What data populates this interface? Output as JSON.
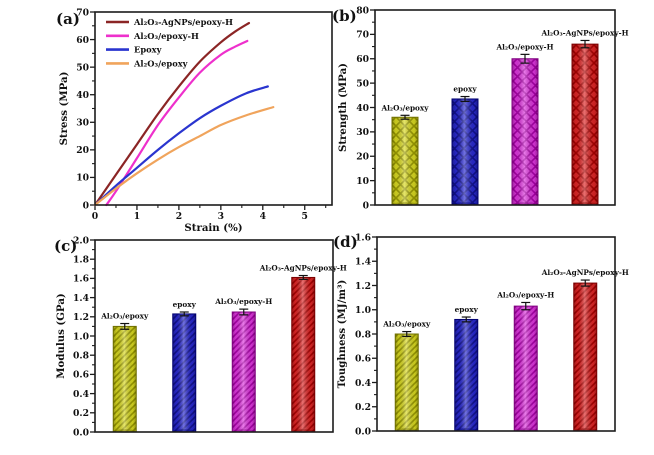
{
  "figure": {
    "description": "Four-panel mechanical properties figure of epoxy composites",
    "background_color": "#ffffff",
    "axis_color": "#1c1c1c"
  },
  "chart_data": [
    {
      "id": "a",
      "type": "line",
      "panel_label": "(a)",
      "xlabel": "Strain (%)",
      "ylabel": "Stress (MPa)",
      "xlim": [
        0,
        5.65
      ],
      "ylim": [
        0,
        70
      ],
      "xticks": [
        0,
        1,
        2,
        3,
        4,
        5
      ],
      "xtick_labels": [
        "0",
        "1",
        "2",
        "3",
        "4",
        "5"
      ],
      "yticks": [
        0,
        10,
        20,
        30,
        40,
        50,
        60,
        70
      ],
      "ytick_labels": [
        "0",
        "10",
        "20",
        "30",
        "40",
        "50",
        "60",
        "70"
      ],
      "x_minor_step": 0.5,
      "y_minor_step": 5,
      "grid": false,
      "legend_position": "top-left",
      "legend": [
        {
          "label": "Al₂O₃-AgNPs/epoxy-H",
          "color": "#8b2525"
        },
        {
          "label": "Al₂O₃/epoxy-H",
          "color": "#ee30cc"
        },
        {
          "label": "Epoxy",
          "color": "#2a35cf"
        },
        {
          "label": "Al₂O₃/epoxy",
          "color": "#f0a45c"
        }
      ],
      "series": [
        {
          "name": "Al₂O₃-AgNPs/epoxy-H",
          "color": "#8b2525",
          "points": [
            [
              0,
              0
            ],
            [
              0.5,
              11
            ],
            [
              1,
              22
            ],
            [
              1.5,
              33
            ],
            [
              2,
              43
            ],
            [
              2.5,
              52
            ],
            [
              3,
              59
            ],
            [
              3.35,
              63
            ],
            [
              3.67,
              66
            ]
          ]
        },
        {
          "name": "Al₂O₃/epoxy-H",
          "color": "#ee30cc",
          "points": [
            [
              0.27,
              0
            ],
            [
              0.5,
              5
            ],
            [
              1,
              17
            ],
            [
              1.5,
              29
            ],
            [
              2,
              39
            ],
            [
              2.5,
              48
            ],
            [
              3,
              54.5
            ],
            [
              3.35,
              57.5
            ],
            [
              3.63,
              59.5
            ]
          ]
        },
        {
          "name": "Epoxy",
          "color": "#2a35cf",
          "points": [
            [
              0,
              0
            ],
            [
              0.5,
              7
            ],
            [
              1,
              13.5
            ],
            [
              1.5,
              20
            ],
            [
              2,
              26
            ],
            [
              2.5,
              31.5
            ],
            [
              3,
              36
            ],
            [
              3.6,
              40.5
            ],
            [
              4.12,
              43
            ]
          ]
        },
        {
          "name": "Al₂O₃/epoxy",
          "color": "#f0a45c",
          "points": [
            [
              0,
              0
            ],
            [
              0.5,
              6
            ],
            [
              1,
              11.5
            ],
            [
              1.5,
              16.5
            ],
            [
              2,
              21
            ],
            [
              2.5,
              25
            ],
            [
              3,
              29
            ],
            [
              3.6,
              32.5
            ],
            [
              4.25,
              35.5
            ]
          ]
        }
      ]
    },
    {
      "id": "b",
      "type": "bar",
      "panel_label": "(b)",
      "ylabel": "Strength (MPa)",
      "ylim": [
        0,
        80
      ],
      "yticks": [
        0,
        10,
        20,
        30,
        40,
        50,
        60,
        70,
        80
      ],
      "ytick_labels": [
        "0",
        "10",
        "20",
        "30",
        "40",
        "50",
        "60",
        "70",
        "80"
      ],
      "y_minor_step": 5,
      "hatch": "cross",
      "bars": [
        {
          "label": "Al₂O₃/epoxy",
          "value": 36,
          "error": 0.8,
          "fill": "#d8d820",
          "hatch_color": "#9a9a00",
          "edge": "#6f6f00"
        },
        {
          "label": "epoxy",
          "value": 43.5,
          "error": 1.0,
          "fill": "#2828cf",
          "hatch_color": "#101090",
          "edge": "#000070"
        },
        {
          "label": "Al₂O₃/epoxy-H",
          "value": 60,
          "error": 1.8,
          "fill": "#dd35dd",
          "hatch_color": "#a800a8",
          "edge": "#800080"
        },
        {
          "label": "Al₂O₃-AgNPs/epoxy-H",
          "value": 66,
          "error": 1.5,
          "fill": "#dd2525",
          "hatch_color": "#a80000",
          "edge": "#7a0000"
        }
      ]
    },
    {
      "id": "c",
      "type": "bar",
      "panel_label": "(c)",
      "ylabel": "Modulus (GPa)",
      "ylim": [
        0,
        2.0
      ],
      "yticks": [
        0,
        0.2,
        0.4,
        0.6,
        0.8,
        1.0,
        1.2,
        1.4,
        1.6,
        1.8,
        2.0
      ],
      "ytick_labels": [
        "0.0",
        "0.2",
        "0.4",
        "0.6",
        "0.8",
        "1.0",
        "1.2",
        "1.4",
        "1.6",
        "1.8",
        "2.0"
      ],
      "y_minor_step": 0.1,
      "hatch": "diag",
      "bars": [
        {
          "label": "Al₂O₃/epoxy",
          "value": 1.1,
          "error": 0.03,
          "fill": "#d8d820",
          "hatch_color": "#9a9a00",
          "edge": "#6f6f00"
        },
        {
          "label": "epoxy",
          "value": 1.23,
          "error": 0.02,
          "fill": "#2828cf",
          "hatch_color": "#101090",
          "edge": "#000070"
        },
        {
          "label": "Al₂O₃/epoxy-H",
          "value": 1.25,
          "error": 0.03,
          "fill": "#dd35dd",
          "hatch_color": "#a800a8",
          "edge": "#800080"
        },
        {
          "label": "Al₂O₃-AgNPs/epoxy-H",
          "value": 1.61,
          "error": 0.02,
          "fill": "#dd2525",
          "hatch_color": "#a80000",
          "edge": "#7a0000"
        }
      ]
    },
    {
      "id": "d",
      "type": "bar",
      "panel_label": "(d)",
      "ylabel": "Toughness (MJ/m³)",
      "ylim": [
        0,
        1.6
      ],
      "yticks": [
        0,
        0.2,
        0.4,
        0.6,
        0.8,
        1.0,
        1.2,
        1.4,
        1.6
      ],
      "ytick_labels": [
        "0.0",
        "0.2",
        "0.4",
        "0.6",
        "0.8",
        "1.0",
        "1.2",
        "1.4",
        "1.6"
      ],
      "y_minor_step": 0.1,
      "hatch": "diag",
      "bars": [
        {
          "label": "Al₂O₃/epoxy",
          "value": 0.8,
          "error": 0.02,
          "fill": "#d8d820",
          "hatch_color": "#9a9a00",
          "edge": "#6f6f00"
        },
        {
          "label": "epoxy",
          "value": 0.92,
          "error": 0.02,
          "fill": "#2828cf",
          "hatch_color": "#101090",
          "edge": "#000070"
        },
        {
          "label": "Al₂O₃/epoxy-H",
          "value": 1.03,
          "error": 0.03,
          "fill": "#dd35dd",
          "hatch_color": "#a800a8",
          "edge": "#800080"
        },
        {
          "label": "Al₂O₃-AgNPs/epoxy-H",
          "value": 1.22,
          "error": 0.025,
          "fill": "#dd2525",
          "hatch_color": "#a80000",
          "edge": "#7a0000"
        }
      ]
    }
  ]
}
